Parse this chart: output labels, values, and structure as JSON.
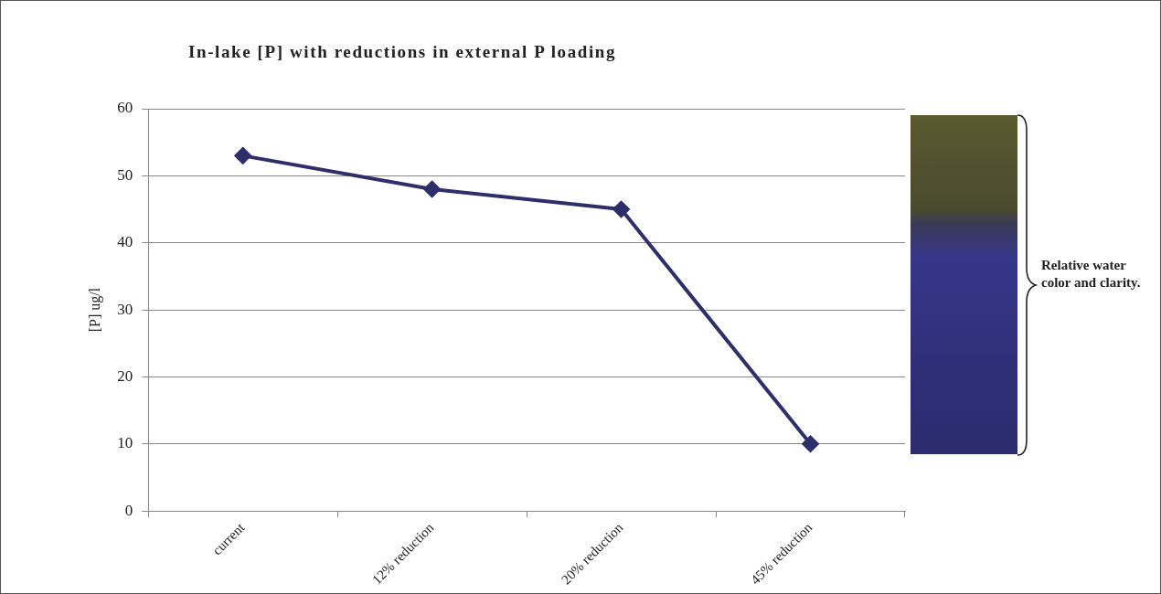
{
  "chart_data": {
    "type": "line",
    "title": "In-lake [P] with reductions in external P loading",
    "ylabel": "[P] ug/l",
    "categories": [
      "current",
      "12% reduction",
      "20% reduction",
      "45% reduction"
    ],
    "series": [
      {
        "color": "#2e2e6a",
        "values": [
          53,
          48,
          45,
          10
        ]
      }
    ],
    "ylim": [
      0,
      60
    ],
    "yticks": [
      0,
      10,
      20,
      30,
      40,
      50,
      60
    ],
    "grid": "y",
    "legend": false,
    "marker": "diamond",
    "line_style": "solid",
    "annotations": [
      "Relative water color and clarity."
    ]
  }
}
